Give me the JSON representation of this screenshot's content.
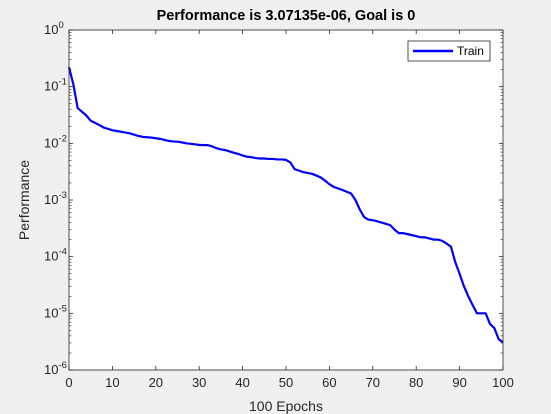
{
  "window": {
    "background": "#f0f0f0"
  },
  "chart_data": {
    "type": "line",
    "title": "Performance is 3.07135e-06, Goal is 0",
    "xlabel": "100 Epochs",
    "ylabel": "Performance",
    "xlim": [
      0,
      100
    ],
    "ylim": [
      1e-06,
      1
    ],
    "yscale": "log",
    "grid": false,
    "legend_position": "top-right",
    "x_ticks": [
      "0",
      "10",
      "20",
      "30",
      "40",
      "50",
      "60",
      "70",
      "80",
      "90",
      "100"
    ],
    "y_ticks": [
      {
        "base": "10",
        "exp": "0"
      },
      {
        "base": "10",
        "exp": "-1"
      },
      {
        "base": "10",
        "exp": "-2"
      },
      {
        "base": "10",
        "exp": "-3"
      },
      {
        "base": "10",
        "exp": "-4"
      },
      {
        "base": "10",
        "exp": "-5"
      },
      {
        "base": "10",
        "exp": "-6"
      }
    ],
    "series": [
      {
        "name": "Train",
        "color": "#0000ff",
        "x": [
          0,
          1,
          2,
          3,
          4,
          5,
          6,
          7,
          8,
          9,
          10,
          11,
          12,
          13,
          14,
          15,
          16,
          17,
          18,
          19,
          20,
          21,
          22,
          23,
          24,
          25,
          26,
          27,
          28,
          29,
          30,
          31,
          32,
          33,
          34,
          35,
          36,
          37,
          38,
          39,
          40,
          41,
          42,
          43,
          44,
          45,
          46,
          47,
          48,
          49,
          50,
          51,
          52,
          53,
          54,
          55,
          56,
          57,
          58,
          59,
          60,
          61,
          62,
          63,
          64,
          65,
          66,
          67,
          68,
          69,
          70,
          71,
          72,
          73,
          74,
          75,
          76,
          77,
          78,
          79,
          80,
          81,
          82,
          83,
          84,
          85,
          86,
          87,
          88,
          89,
          90,
          91,
          92,
          93,
          94,
          95,
          96,
          97,
          98,
          99,
          100
        ],
        "y": [
          0.22,
          0.11,
          0.042,
          0.036,
          0.031,
          0.025,
          0.023,
          0.021,
          0.019,
          0.018,
          0.017,
          0.0165,
          0.016,
          0.0155,
          0.015,
          0.0142,
          0.0135,
          0.013,
          0.0128,
          0.0126,
          0.0123,
          0.012,
          0.0115,
          0.011,
          0.0108,
          0.0107,
          0.0104,
          0.01,
          0.0098,
          0.0096,
          0.0094,
          0.0093,
          0.0093,
          0.0088,
          0.0082,
          0.0078,
          0.0076,
          0.0072,
          0.0068,
          0.0065,
          0.0061,
          0.0058,
          0.0057,
          0.0055,
          0.0054,
          0.0054,
          0.0053,
          0.0053,
          0.0052,
          0.0052,
          0.0051,
          0.0046,
          0.0035,
          0.0033,
          0.0031,
          0.003,
          0.0029,
          0.0027,
          0.0025,
          0.0022,
          0.0019,
          0.0017,
          0.0016,
          0.0015,
          0.0014,
          0.0013,
          0.001,
          0.00068,
          0.0005,
          0.00045,
          0.00044,
          0.00042,
          0.0004,
          0.00038,
          0.00036,
          0.0003,
          0.00026,
          0.00026,
          0.00025,
          0.00024,
          0.00023,
          0.00022,
          0.00022,
          0.00021,
          0.0002,
          0.0002,
          0.00019,
          0.00017,
          0.00015,
          8e-05,
          5e-05,
          3e-05,
          2e-05,
          1.4e-05,
          1e-05,
          1e-05,
          1e-05,
          6.5e-06,
          5.5e-06,
          3.5e-06,
          3.07e-06
        ]
      }
    ]
  }
}
